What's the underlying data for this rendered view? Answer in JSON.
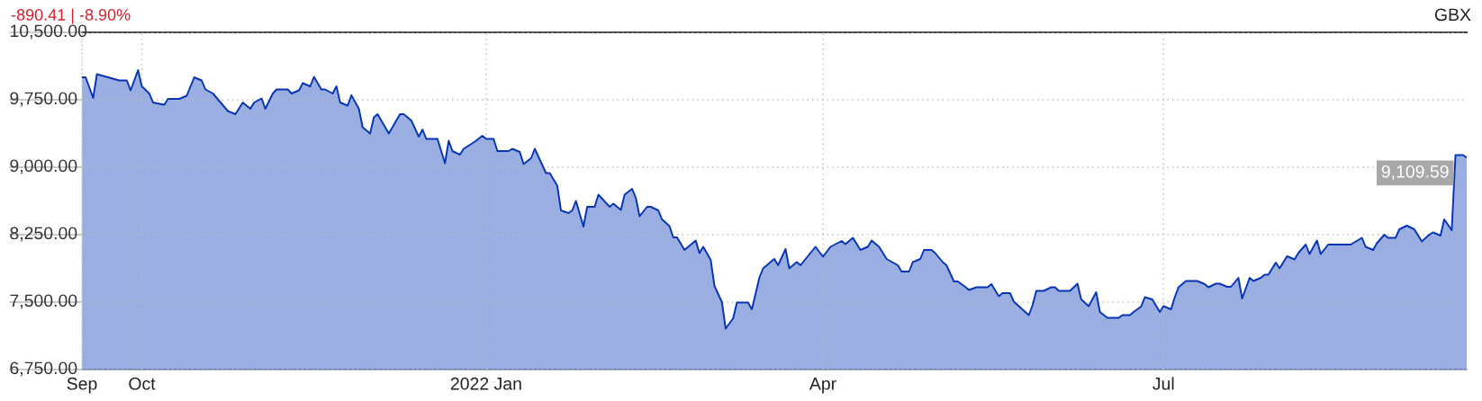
{
  "chart_data": {
    "type": "area",
    "title": "-890.41 | -8.90%",
    "annotations": [
      "GBX",
      {
        "text": "9,109.59",
        "x": "2022-09-20",
        "y": 9109.59
      }
    ],
    "x": [
      "2021-09-15",
      "2021-09-16",
      "2021-09-18",
      "2021-09-19",
      "2021-09-25",
      "2021-09-27",
      "2021-09-28",
      "2021-09-30",
      "2021-10-01",
      "2021-10-03",
      "2021-10-04",
      "2021-10-07",
      "2021-10-08",
      "2021-10-11",
      "2021-10-13",
      "2021-10-15",
      "2021-10-17",
      "2021-10-18",
      "2021-10-20",
      "2021-10-24",
      "2021-10-26",
      "2021-10-28",
      "2021-10-30",
      "2021-10-31",
      "2021-11-02",
      "2021-11-03",
      "2021-11-05",
      "2021-11-06",
      "2021-11-09",
      "2021-11-10",
      "2021-11-12",
      "2021-11-13",
      "2021-11-15",
      "2021-11-16",
      "2021-11-18",
      "2021-11-19",
      "2021-11-21",
      "2021-11-22",
      "2021-11-23",
      "2021-11-25",
      "2021-11-26",
      "2021-11-28",
      "2021-11-29",
      "2021-12-01",
      "2021-12-02",
      "2021-12-03",
      "2021-12-06",
      "2021-12-08",
      "2021-12-09",
      "2021-12-10",
      "2021-12-12",
      "2021-12-14",
      "2021-12-15",
      "2021-12-16",
      "2021-12-19",
      "2021-12-21",
      "2021-12-22",
      "2021-12-23",
      "2021-12-25",
      "2021-12-26",
      "2021-12-29",
      "2021-12-31",
      "2022-01-01",
      "2022-01-03",
      "2022-01-04",
      "2022-01-07",
      "2022-01-08",
      "2022-01-10",
      "2022-01-11",
      "2022-01-13",
      "2022-01-14",
      "2022-01-17",
      "2022-01-18",
      "2022-01-20",
      "2022-01-21",
      "2022-01-23",
      "2022-01-24",
      "2022-01-25",
      "2022-01-27",
      "2022-01-28",
      "2022-01-30",
      "2022-01-31",
      "2022-02-03",
      "2022-02-04",
      "2022-02-06",
      "2022-02-07",
      "2022-02-09",
      "2022-02-10",
      "2022-02-11",
      "2022-02-13",
      "2022-02-14",
      "2022-02-16",
      "2022-02-17",
      "2022-02-19",
      "2022-02-20",
      "2022-02-21",
      "2022-02-23",
      "2022-02-24",
      "2022-02-26",
      "2022-02-27",
      "2022-02-28",
      "2022-03-02",
      "2022-03-03",
      "2022-03-05",
      "2022-03-06",
      "2022-03-08",
      "2022-03-09",
      "2022-03-12",
      "2022-03-13",
      "2022-03-15",
      "2022-03-16",
      "2022-03-18",
      "2022-03-19",
      "2022-03-20",
      "2022-03-22",
      "2022-03-23",
      "2022-03-25",
      "2022-03-26",
      "2022-03-30",
      "2022-04-01",
      "2022-04-03",
      "2022-04-06",
      "2022-04-07",
      "2022-04-09",
      "2022-04-11",
      "2022-04-13",
      "2022-04-14",
      "2022-04-16",
      "2022-04-18",
      "2022-04-21",
      "2022-04-22",
      "2022-04-24",
      "2022-04-25",
      "2022-04-27",
      "2022-04-28",
      "2022-04-30",
      "2022-05-01",
      "2022-05-03",
      "2022-05-04",
      "2022-05-06",
      "2022-05-07",
      "2022-05-09",
      "2022-05-10",
      "2022-05-12",
      "2022-05-15",
      "2022-05-16",
      "2022-05-18",
      "2022-05-19",
      "2022-05-21",
      "2022-05-22",
      "2022-05-26",
      "2022-05-27",
      "2022-05-28",
      "2022-05-30",
      "2022-06-01",
      "2022-06-02",
      "2022-06-03",
      "2022-06-06",
      "2022-06-08",
      "2022-06-09",
      "2022-06-11",
      "2022-06-13",
      "2022-06-14",
      "2022-06-16",
      "2022-06-19",
      "2022-06-20",
      "2022-06-22",
      "2022-06-23",
      "2022-06-25",
      "2022-06-26",
      "2022-06-28",
      "2022-06-30",
      "2022-07-01",
      "2022-07-03",
      "2022-07-04",
      "2022-07-05",
      "2022-07-07",
      "2022-07-10",
      "2022-07-12",
      "2022-07-13",
      "2022-07-15",
      "2022-07-16",
      "2022-07-18",
      "2022-07-19",
      "2022-07-21",
      "2022-07-22",
      "2022-07-24",
      "2022-07-25",
      "2022-07-27",
      "2022-07-28",
      "2022-07-29",
      "2022-07-31",
      "2022-08-01",
      "2022-08-03",
      "2022-08-05",
      "2022-08-06",
      "2022-08-08",
      "2022-08-09",
      "2022-08-11",
      "2022-08-12",
      "2022-08-14",
      "2022-08-20",
      "2022-08-23",
      "2022-08-24",
      "2022-08-26",
      "2022-08-27",
      "2022-08-29",
      "2022-08-30",
      "2022-09-01",
      "2022-09-02",
      "2022-09-04",
      "2022-09-06",
      "2022-09-08",
      "2022-09-10",
      "2022-09-11",
      "2022-09-13",
      "2022-09-14",
      "2022-09-16",
      "2022-09-17",
      "2022-09-19",
      "2022-09-20"
    ],
    "series": [
      {
        "color": "#0535b5",
        "values": [
          10000,
          10000,
          9770,
          10035,
          9965,
          9965,
          9855,
          10080,
          9900,
          9820,
          9720,
          9695,
          9760,
          9760,
          9795,
          10000,
          9965,
          9865,
          9820,
          9625,
          9590,
          9720,
          9650,
          9720,
          9765,
          9650,
          9820,
          9865,
          9865,
          9820,
          9855,
          9935,
          9900,
          10005,
          9865,
          9865,
          9820,
          9900,
          9720,
          9685,
          9800,
          9650,
          9445,
          9375,
          9555,
          9590,
          9375,
          9520,
          9590,
          9590,
          9520,
          9340,
          9420,
          9315,
          9315,
          9045,
          9295,
          9180,
          9140,
          9205,
          9285,
          9350,
          9315,
          9315,
          9180,
          9180,
          9205,
          9170,
          9035,
          9100,
          9205,
          8935,
          8935,
          8795,
          8520,
          8490,
          8520,
          8625,
          8340,
          8560,
          8560,
          8695,
          8560,
          8595,
          8525,
          8695,
          8760,
          8660,
          8455,
          8560,
          8560,
          8520,
          8420,
          8345,
          8220,
          8220,
          8080,
          8115,
          8185,
          8045,
          8115,
          7970,
          7680,
          7500,
          7205,
          7320,
          7495,
          7495,
          7420,
          7770,
          7875,
          7945,
          7980,
          7910,
          8090,
          7875,
          7945,
          7910,
          8115,
          8005,
          8115,
          8180,
          8145,
          8215,
          8080,
          8115,
          8185,
          8115,
          7980,
          7910,
          7840,
          7840,
          7945,
          7980,
          8080,
          8080,
          8045,
          7945,
          7910,
          7730,
          7730,
          7670,
          7635,
          7665,
          7665,
          7700,
          7565,
          7600,
          7600,
          7505,
          7355,
          7465,
          7625,
          7625,
          7665,
          7665,
          7625,
          7625,
          7705,
          7530,
          7455,
          7610,
          7390,
          7325,
          7325,
          7355,
          7355,
          7390,
          7450,
          7555,
          7530,
          7390,
          7455,
          7420,
          7555,
          7665,
          7735,
          7735,
          7700,
          7665,
          7705,
          7705,
          7670,
          7670,
          7770,
          7540,
          7770,
          7735,
          7770,
          7805,
          7805,
          7940,
          7875,
          8010,
          7975,
          8045,
          8140,
          8035,
          8185,
          8035,
          8140,
          8140,
          8215,
          8115,
          8080,
          8155,
          8250,
          8215,
          8215,
          8310,
          8350,
          8310,
          8175,
          8250,
          8275,
          8240,
          8420,
          8300,
          9135,
          9135,
          9109.59
        ]
      }
    ],
    "xlim": [
      "2021-09-15",
      "2022-09-20"
    ],
    "xticks": [
      {
        "value": "2021-09-15",
        "label": "Sep"
      },
      {
        "value": "2021-10-01",
        "label": "Oct"
      },
      {
        "value": "2022-01-01",
        "label": "2022 Jan"
      },
      {
        "value": "2022-04-01",
        "label": "Apr"
      },
      {
        "value": "2022-07-01",
        "label": "Jul"
      }
    ],
    "ylim": [
      6750,
      10500
    ],
    "yticks": [
      {
        "value": 6750,
        "label": "6,750.00"
      },
      {
        "value": 7500,
        "label": "7,500.00"
      },
      {
        "value": 8250,
        "label": "8,250.00"
      },
      {
        "value": 9000,
        "label": "9,000.00"
      },
      {
        "value": 9750,
        "label": "9,750.00"
      },
      {
        "value": 10500,
        "label": "10,500.00"
      }
    ],
    "grid": true,
    "legend": false,
    "line_style": "solid",
    "marker": "none"
  }
}
